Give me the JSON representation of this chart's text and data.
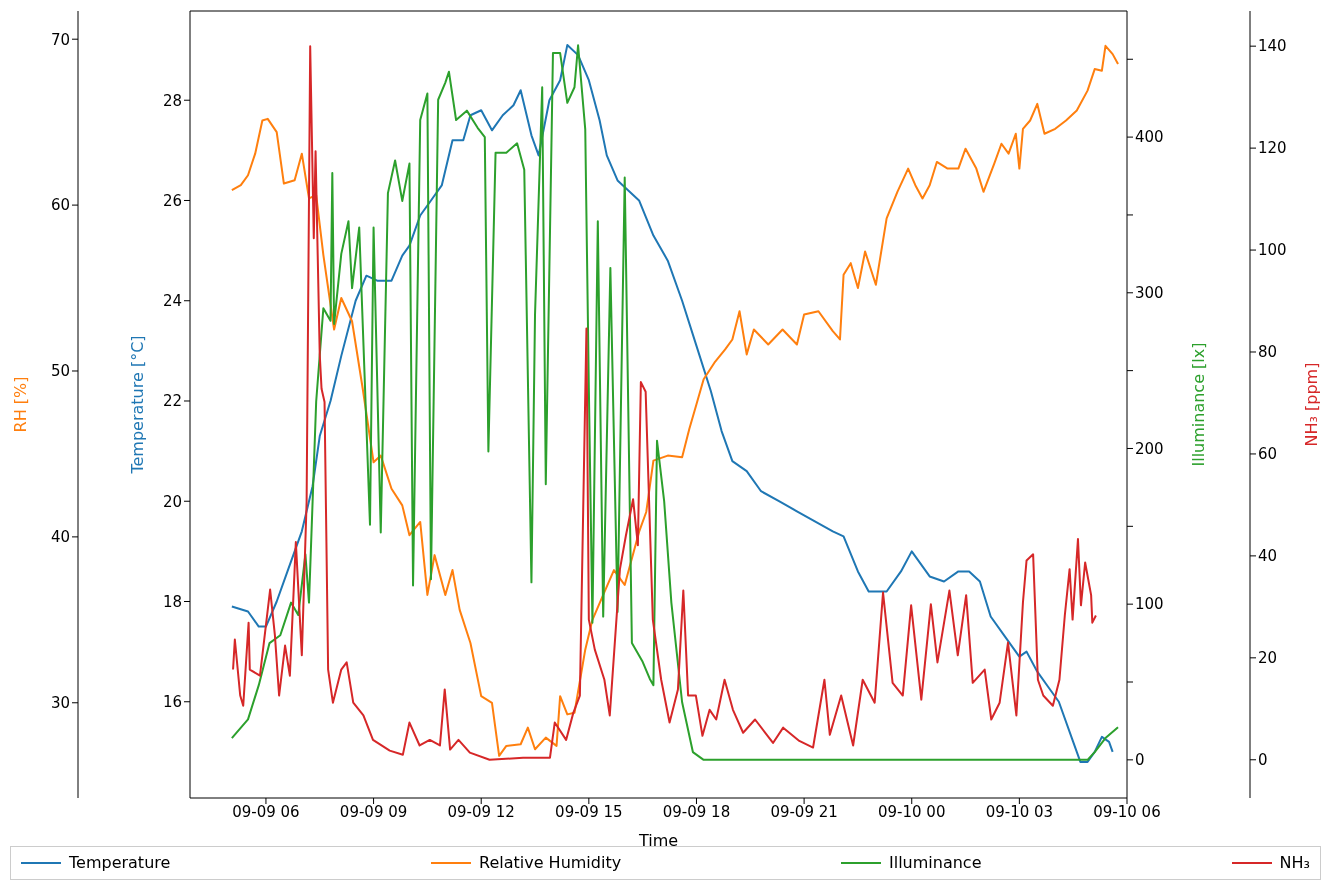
{
  "chart_data": [
    {
      "type": "line",
      "xlabel": "Time",
      "ylabel": "Temperature [°C]",
      "y2label": "Illuminance [lx]",
      "y3label": "RH [%]",
      "xlim": [
        "--09-09T03:53",
        "--09-10T06:00"
      ],
      "xticks": [
        {
          "value": "--09-09T06:00",
          "label": "09-09 06"
        },
        {
          "value": "--09-09T09:00",
          "label": "09-09 09"
        },
        {
          "value": "--09-09T12:00",
          "label": "09-09 12"
        },
        {
          "value": "--09-09T15:00",
          "label": "09-09 15"
        },
        {
          "value": "--09-09T18:00",
          "label": "09-09 18"
        },
        {
          "value": "--09-09T21:00",
          "label": "09-09 21"
        },
        {
          "value": "--09-10T00:00",
          "label": "09-10 00"
        },
        {
          "value": "--09-10T03:00",
          "label": "09-10 03"
        },
        {
          "value": "--09-10T06:00",
          "label": "09-10 06"
        }
      ],
      "ylim": [
        14.08,
        29.78
      ],
      "yticks": [
        16,
        18,
        20,
        22,
        24,
        26,
        28
      ],
      "y2lim": [
        -24.5,
        481
      ],
      "y2ticks": [
        0,
        {
          "value": 50,
          "label": null
        },
        100,
        {
          "value": 150,
          "label": null
        },
        200,
        {
          "value": 250,
          "label": null
        },
        300,
        {
          "value": 350,
          "label": null
        },
        400,
        {
          "value": 450,
          "label": null
        }
      ],
      "y3lim": [
        24.26,
        71.7
      ],
      "y3ticks": [
        30,
        40,
        50,
        60,
        70
      ],
      "legend": "bottom",
      "marker": "none",
      "line_style": "solid",
      "series": [
        {
          "name": "Temperature",
          "color": "#1f77b4",
          "x": [
            "--09-09T05:03",
            "--09-09T05:30",
            "--09-09T05:48",
            "--09-09T06:00",
            "--09-09T06:18",
            "--09-09T06:36",
            "--09-09T07:00",
            "--09-09T07:18",
            "--09-09T07:30",
            "--09-09T07:48",
            "--09-09T08:06",
            "--09-09T08:30",
            "--09-09T08:48",
            "--09-09T09:06",
            "--09-09T09:30",
            "--09-09T09:48",
            "--09-09T10:00",
            "--09-09T10:18",
            "--09-09T10:36",
            "--09-09T10:54",
            "--09-09T11:12",
            "--09-09T11:30",
            "--09-09T11:42",
            "--09-09T12:00",
            "--09-09T12:18",
            "--09-09T12:36",
            "--09-09T12:54",
            "--09-09T13:06",
            "--09-09T13:24",
            "--09-09T13:36",
            "--09-09T13:54",
            "--09-09T14:12",
            "--09-09T14:24",
            "--09-09T14:42",
            "--09-09T15:00",
            "--09-09T15:18",
            "--09-09T15:30",
            "--09-09T15:48",
            "--09-09T16:06",
            "--09-09T16:24",
            "--09-09T16:48",
            "--09-09T17:12",
            "--09-09T17:36",
            "--09-09T18:00",
            "--09-09T18:24",
            "--09-09T18:42",
            "--09-09T19:00",
            "--09-09T19:24",
            "--09-09T19:48",
            "--09-09T20:18",
            "--09-09T20:48",
            "--09-09T21:18",
            "--09-09T21:48",
            "--09-09T22:06",
            "--09-09T22:30",
            "--09-09T22:48",
            "--09-09T23:18",
            "--09-09T23:42",
            "--09-10T00:00",
            "--09-10T00:18",
            "--09-10T00:30",
            "--09-10T00:54",
            "--09-10T01:18",
            "--09-10T01:36",
            "--09-10T01:54",
            "--09-10T02:12",
            "--09-10T02:36",
            "--09-10T03:00",
            "--09-10T03:12",
            "--09-10T03:30",
            "--09-10T03:48",
            "--09-10T04:06",
            "--09-10T04:30",
            "--09-10T04:42",
            "--09-10T04:54",
            "--09-10T05:06",
            "--09-10T05:18",
            "--09-10T05:30",
            "--09-10T05:36"
          ],
          "values": [
            17.9,
            17.8,
            17.5,
            17.5,
            18.0,
            18.6,
            19.4,
            20.3,
            21.3,
            22.0,
            22.9,
            24.0,
            24.5,
            24.4,
            24.4,
            24.9,
            25.1,
            25.7,
            26.0,
            26.3,
            27.2,
            27.2,
            27.7,
            27.8,
            27.4,
            27.7,
            27.9,
            28.2,
            27.3,
            26.9,
            28.0,
            28.4,
            29.1,
            28.9,
            28.4,
            27.6,
            26.9,
            26.4,
            26.2,
            26.0,
            25.3,
            24.8,
            24.0,
            23.1,
            22.2,
            21.4,
            20.8,
            20.6,
            20.2,
            20.0,
            19.8,
            19.6,
            19.4,
            19.3,
            18.6,
            18.2,
            18.2,
            18.6,
            19.0,
            18.7,
            18.5,
            18.4,
            18.6,
            18.6,
            18.4,
            17.7,
            17.3,
            16.9,
            17.0,
            16.6,
            16.3,
            16.0,
            15.2,
            14.8,
            14.8,
            15.0,
            15.3,
            15.2,
            15.0
          ]
        },
        {
          "name": "Relative Humidity",
          "color": "#ff7f0e",
          "axis": "y3",
          "x": [
            "--09-09T05:03",
            "--09-09T05:18",
            "--09-09T05:30",
            "--09-09T05:42",
            "--09-09T05:54",
            "--09-09T06:03",
            "--09-09T06:18",
            "--09-09T06:30",
            "--09-09T06:48",
            "--09-09T07:00",
            "--09-09T07:12",
            "--09-09T07:24",
            "--09-09T07:36",
            "--09-09T07:54",
            "--09-09T08:06",
            "--09-09T08:24",
            "--09-09T08:42",
            "--09-09T09:00",
            "--09-09T09:12",
            "--09-09T09:30",
            "--09-09T09:48",
            "--09-09T10:00",
            "--09-09T10:18",
            "--09-09T10:30",
            "--09-09T10:42",
            "--09-09T11:00",
            "--09-09T11:12",
            "--09-09T11:24",
            "--09-09T11:42",
            "--09-09T12:00",
            "--09-09T12:18",
            "--09-09T12:30",
            "--09-09T12:42",
            "--09-09T13:06",
            "--09-09T13:18",
            "--09-09T13:30",
            "--09-09T13:48",
            "--09-09T14:06",
            "--09-09T14:12",
            "--09-09T14:24",
            "--09-09T14:36",
            "--09-09T14:54",
            "--09-09T15:06",
            "--09-09T15:24",
            "--09-09T15:42",
            "--09-09T16:00",
            "--09-09T16:24",
            "--09-09T16:36",
            "--09-09T16:48",
            "--09-09T17:12",
            "--09-09T17:36",
            "--09-09T17:48",
            "--09-09T18:00",
            "--09-09T18:12",
            "--09-09T18:30",
            "--09-09T18:48",
            "--09-09T19:00",
            "--09-09T19:12",
            "--09-09T19:24",
            "--09-09T19:36",
            "--09-09T20:00",
            "--09-09T20:24",
            "--09-09T20:48",
            "--09-09T21:00",
            "--09-09T21:24",
            "--09-09T21:48",
            "--09-09T22:00",
            "--09-09T22:06",
            "--09-09T22:18",
            "--09-09T22:30",
            "--09-09T22:42",
            "--09-09T23:00",
            "--09-09T23:18",
            "--09-09T23:36",
            "--09-09T23:54",
            "--09-10T00:06",
            "--09-10T00:18",
            "--09-10T00:30",
            "--09-10T00:42",
            "--09-10T01:00",
            "--09-10T01:18",
            "--09-10T01:30",
            "--09-10T01:48",
            "--09-10T02:00",
            "--09-10T02:18",
            "--09-10T02:30",
            "--09-10T02:42",
            "--09-10T02:54",
            "--09-10T03:00",
            "--09-10T03:06",
            "--09-10T03:18",
            "--09-10T03:30",
            "--09-10T03:42",
            "--09-10T04:00",
            "--09-10T04:18",
            "--09-10T04:36",
            "--09-10T04:54",
            "--09-10T05:06",
            "--09-10T05:18",
            "--09-10T05:24",
            "--09-10T05:36",
            "--09-10T05:45"
          ],
          "values": [
            60.9,
            61.2,
            61.8,
            63.1,
            65.1,
            65.2,
            64.4,
            61.3,
            61.5,
            63.1,
            60.4,
            60.6,
            57.0,
            52.5,
            54.4,
            53.0,
            48.9,
            44.5,
            44.9,
            42.9,
            41.9,
            40.1,
            40.9,
            36.5,
            38.9,
            36.5,
            38.0,
            35.6,
            33.6,
            30.4,
            30.0,
            26.8,
            27.4,
            27.5,
            28.5,
            27.2,
            27.9,
            27.4,
            30.4,
            29.3,
            29.4,
            33.2,
            35.0,
            36.5,
            38.0,
            37.1,
            40.3,
            41.5,
            44.6,
            44.9,
            44.8,
            46.5,
            48.0,
            49.5,
            50.5,
            51.3,
            51.9,
            53.6,
            51.0,
            52.5,
            51.6,
            52.5,
            51.6,
            53.4,
            53.6,
            52.4,
            51.9,
            55.8,
            56.5,
            55.0,
            57.2,
            55.2,
            59.2,
            60.8,
            62.2,
            61.2,
            60.4,
            61.2,
            62.6,
            62.2,
            62.2,
            63.4,
            62.2,
            60.8,
            62.5,
            63.7,
            63.1,
            64.3,
            62.2,
            64.6,
            65.1,
            66.1,
            64.3,
            64.6,
            65.1,
            65.7,
            66.9,
            68.2,
            68.1,
            69.6,
            69.1,
            68.5
          ]
        },
        {
          "name": "Illuminance",
          "color": "#2ca02c",
          "axis": "y2",
          "x": [
            "--09-09T05:03",
            "--09-09T05:30",
            "--09-09T05:48",
            "--09-09T06:06",
            "--09-09T06:24",
            "--09-09T06:42",
            "--09-09T06:54",
            "--09-09T07:06",
            "--09-09T07:12",
            "--09-09T07:24",
            "--09-09T07:36",
            "--09-09T07:48",
            "--09-09T07:51",
            "--09-09T07:54",
            "--09-09T08:06",
            "--09-09T08:18",
            "--09-09T08:24",
            "--09-09T08:36",
            "--09-09T08:54",
            "--09-09T09:00",
            "--09-09T09:12",
            "--09-09T09:24",
            "--09-09T09:36",
            "--09-09T09:48",
            "--09-09T10:00",
            "--09-09T10:06",
            "--09-09T10:18",
            "--09-09T10:30",
            "--09-09T10:36",
            "--09-09T10:48",
            "--09-09T11:00",
            "--09-09T11:06",
            "--09-09T11:18",
            "--09-09T11:36",
            "--09-09T11:54",
            "--09-09T12:06",
            "--09-09T12:12",
            "--09-09T12:24",
            "--09-09T12:42",
            "--09-09T13:00",
            "--09-09T13:12",
            "--09-09T13:24",
            "--09-09T13:30",
            "--09-09T13:42",
            "--09-09T13:48",
            "--09-09T14:00",
            "--09-09T14:12",
            "--09-09T14:24",
            "--09-09T14:36",
            "--09-09T14:42",
            "--09-09T14:54",
            "--09-09T15:00",
            "--09-09T15:06",
            "--09-09T15:15",
            "--09-09T15:24",
            "--09-09T15:36",
            "--09-09T15:48",
            "--09-09T16:00",
            "--09-09T16:12",
            "--09-09T16:30",
            "--09-09T16:42",
            "--09-09T16:48",
            "--09-09T16:54",
            "--09-09T17:06",
            "--09-09T17:18",
            "--09-09T17:36",
            "--09-09T17:54",
            "--09-09T18:12",
            "--09-09T21:00",
            "--09-10T00:00",
            "--09-10T03:00",
            "--09-10T04:30",
            "--09-10T04:54",
            "--09-10T05:06",
            "--09-10T05:24",
            "--09-10T05:45"
          ],
          "values": [
            14,
            26,
            48,
            75,
            80,
            101,
            93,
            132,
            101,
            230,
            290,
            282,
            377,
            280,
            325,
            346,
            303,
            342,
            151,
            342,
            146,
            364,
            385,
            359,
            383,
            112,
            411,
            428,
            116,
            424,
            435,
            442,
            411,
            417,
            406,
            400,
            198,
            390,
            390,
            396,
            379,
            114,
            286,
            432,
            177,
            454,
            454,
            422,
            432,
            459,
            405,
            239,
            88,
            346,
            92,
            316,
            95,
            374,
            75,
            63,
            52,
            48,
            205,
            166,
            101,
            37,
            5,
            0,
            0,
            0,
            0,
            0,
            0,
            5,
            14,
            21
          ]
        }
      ]
    },
    {
      "type": "line",
      "ylabel": "NH₃ [ppm]",
      "xlim": [
        "--09-09T03:53",
        "--09-10T06:00"
      ],
      "ylim": [
        -7.5,
        146.9
      ],
      "yticks": [
        0,
        20,
        40,
        60,
        80,
        100,
        120,
        140
      ],
      "tick_labels": "y",
      "legend": "bottom",
      "marker": "none",
      "line_style": "solid",
      "series": [
        {
          "name": "NH₃",
          "color": "#d62728",
          "x": [
            "--09-09T05:05",
            "--09-09T05:08",
            "--09-09T05:17",
            "--09-09T05:22",
            "--09-09T05:31",
            "--09-09T05:33",
            "--09-09T05:50",
            "--09-09T06:07",
            "--09-09T06:15",
            "--09-09T06:22",
            "--09-09T06:32",
            "--09-09T06:40",
            "--09-09T06:50",
            "--09-09T07:00",
            "--09-09T07:08",
            "--09-09T07:14",
            "--09-09T07:20",
            "--09-09T07:23",
            "--09-09T07:30",
            "--09-09T07:33",
            "--09-09T07:38",
            "--09-09T07:44",
            "--09-09T07:52",
            "--09-09T08:06",
            "--09-09T08:15",
            "--09-09T08:26",
            "--09-09T08:43",
            "--09-09T08:59",
            "--09-09T09:27",
            "--09-09T09:49",
            "--09-09T10:00",
            "--09-09T10:17",
            "--09-09T10:34",
            "--09-09T10:51",
            "--09-09T10:59",
            "--09-09T11:08",
            "--09-09T11:22",
            "--09-09T11:41",
            "--09-09T12:14",
            "--09-09T13:10",
            "--09-09T13:55",
            "--09-09T14:03",
            "--09-09T14:22",
            "--09-09T14:34",
            "--09-09T14:45",
            "--09-09T14:56",
            "--09-09T15:00",
            "--09-09T15:10",
            "--09-09T15:26",
            "--09-09T15:35",
            "--09-09T15:52",
            "--09-09T16:02",
            "--09-09T16:14",
            "--09-09T16:22",
            "--09-09T16:27",
            "--09-09T16:35",
            "--09-09T16:47",
            "--09-09T17:01",
            "--09-09T17:15",
            "--09-09T17:29",
            "--09-09T17:38",
            "--09-09T17:46",
            "--09-09T17:59",
            "--09-09T18:10",
            "--09-09T18:22",
            "--09-09T18:33",
            "--09-09T18:47",
            "--09-09T19:01",
            "--09-09T19:18",
            "--09-09T19:38",
            "--09-09T20:08",
            "--09-09T20:25",
            "--09-09T20:52",
            "--09-09T21:15",
            "--09-09T21:34",
            "--09-09T21:43",
            "--09-09T22:02",
            "--09-09T22:22",
            "--09-09T22:38",
            "--09-09T22:58",
            "--09-09T23:12",
            "--09-09T23:28",
            "--09-09T23:45",
            "--09-09T23:59",
            "--09-10T00:16",
            "--09-10T00:32",
            "--09-10T00:43",
            "--09-10T01:03",
            "--09-10T01:17",
            "--09-10T01:31",
            "--09-10T01:42",
            "--09-10T02:02",
            "--09-10T02:13",
            "--09-10T02:27",
            "--09-10T02:41",
            "--09-10T02:55",
            "--09-10T03:06",
            "--09-10T03:12",
            "--09-10T03:23",
            "--09-10T03:31",
            "--09-10T03:40",
            "--09-10T03:56",
            "--09-10T04:07",
            "--09-10T04:16",
            "--09-10T04:24",
            "--09-10T04:29",
            "--09-10T04:38",
            "--09-10T04:43",
            "--09-10T04:50",
            "--09-10T05:00",
            "--09-10T05:02",
            "--09-10T05:08"
          ],
          "values": [
            17.7,
            23.6,
            12.6,
            10.6,
            26.9,
            17.7,
            16.5,
            33.4,
            24.4,
            12.6,
            22.4,
            16.5,
            42.7,
            20.5,
            50.5,
            140.0,
            102.3,
            119.4,
            79.4,
            72.8,
            70.2,
            17.7,
            11.2,
            17.7,
            19.1,
            11.2,
            8.7,
            3.9,
            1.8,
            1.0,
            7.3,
            2.8,
            3.9,
            2.8,
            13.8,
            2.0,
            3.9,
            1.4,
            0,
            0.4,
            0.4,
            7.3,
            3.9,
            9.2,
            12.6,
            84.6,
            27.5,
            21.6,
            15.7,
            8.7,
            37.4,
            44.0,
            51.1,
            42.1,
            74.1,
            72.2,
            27.5,
            15.7,
            7.3,
            13.8,
            33.2,
            12.6,
            12.6,
            4.7,
            9.8,
            7.9,
            15.7,
            9.8,
            5.3,
            7.9,
            3.3,
            6.3,
            3.7,
            2.4,
            15.7,
            4.9,
            12.6,
            2.8,
            15.7,
            11.2,
            32.8,
            15.1,
            12.6,
            30.3,
            11.8,
            30.5,
            19.1,
            33.2,
            20.5,
            32.3,
            15.1,
            17.7,
            7.9,
            11.2,
            23.0,
            8.7,
            30.9,
            39.1,
            40.3,
            15.7,
            12.6,
            10.6,
            15.7,
            28.3,
            37.4,
            27.5,
            43.3,
            30.3,
            38.7,
            32.3,
            26.9,
            28.3
          ]
        }
      ]
    }
  ]
}
